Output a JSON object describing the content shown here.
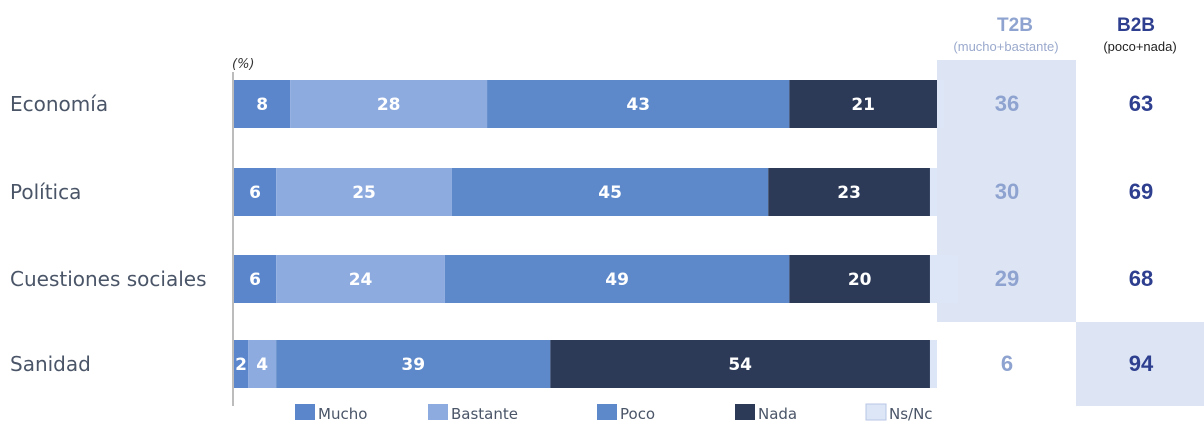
{
  "chart_data": {
    "type": "bar",
    "orientation": "horizontal",
    "stacked": true,
    "unit_label": "(%)",
    "categories": [
      "Economía",
      "Política",
      "Cuestiones sociales",
      "Sanidad"
    ],
    "series": [
      {
        "name": "Mucho",
        "color": "#5b86cc",
        "values": [
          8,
          6,
          6,
          2
        ]
      },
      {
        "name": "Bastante",
        "color": "#8eabe0",
        "values": [
          28,
          25,
          24,
          4
        ]
      },
      {
        "name": "Poco",
        "color": "#5d88c9",
        "values": [
          43,
          45,
          49,
          39
        ]
      },
      {
        "name": "Nada",
        "color": "#2c3a57",
        "values": [
          21,
          23,
          20,
          54
        ]
      },
      {
        "name": "Ns/Nc",
        "color": "#dde6f6",
        "values": [
          1,
          1,
          4,
          1
        ]
      }
    ],
    "xlim": [
      0,
      100
    ],
    "legend_position": "bottom",
    "summary": {
      "t2b": {
        "title": "T2B",
        "subtitle": "(mucho+bastante)",
        "values": [
          36,
          30,
          29,
          6
        ],
        "highlight_color": "#dde5f5",
        "highlighted_rows": [
          0,
          1,
          2
        ]
      },
      "b2b": {
        "title": "B2B",
        "subtitle": "(poco+nada)",
        "values": [
          63,
          69,
          68,
          94
        ],
        "highlight_color": "#dde5f5",
        "highlighted_rows": [
          3
        ]
      }
    }
  }
}
